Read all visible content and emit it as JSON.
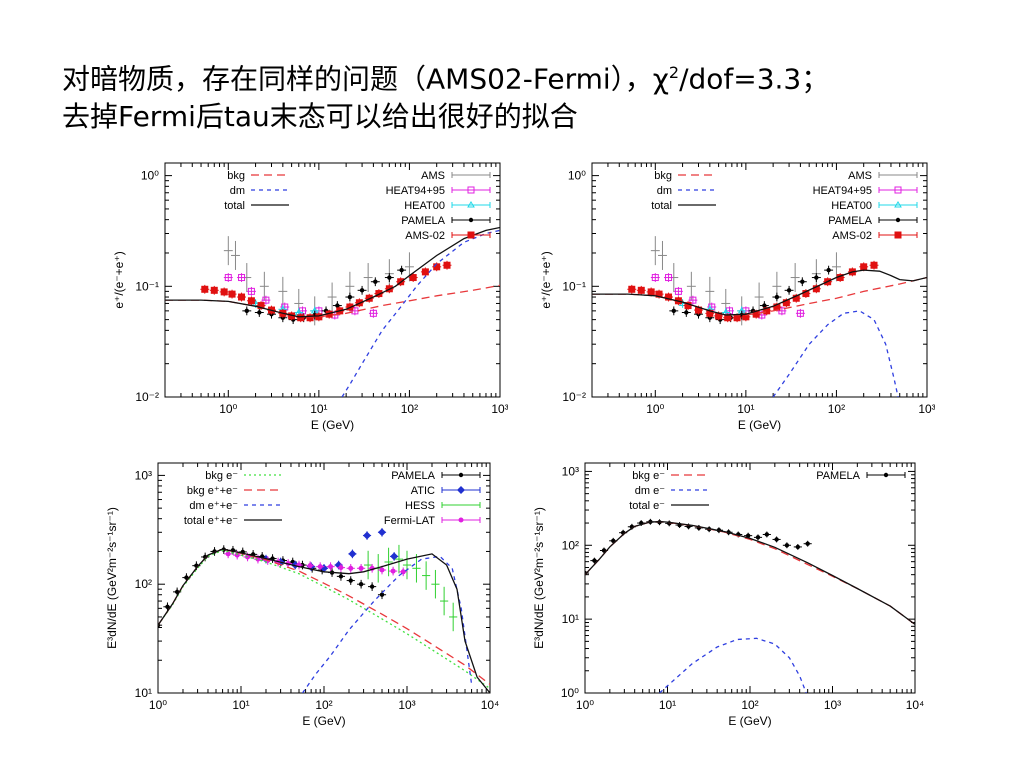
{
  "slide": {
    "title_line1_a": "对暗物质，存在同样的问题（AMS02-Fermi），χ",
    "title_line1_sup": "2",
    "title_line1_b": "/dof=3.3；",
    "title_line2": "去掉Fermi后tau末态可以给出很好的拟合"
  },
  "colors": {
    "bkg": "#e8383b",
    "dm": "#2f3fe0",
    "total": "#111111",
    "ams": "#888888",
    "heat9495": "#e020e0",
    "heat00": "#22d8e8",
    "pamela": "#000000",
    "ams02": "#e01010",
    "atic": "#2030d0",
    "hess": "#30d030",
    "fermi": "#e020e0",
    "bkg_e_minus": "#40e040"
  },
  "chart_data": [
    {
      "type": "scatter",
      "xlabel": "E (GeV)",
      "ylabel": "e⁺/(e⁻+e⁺)",
      "xscale": "log",
      "yscale": "log",
      "xlim": [
        0.2,
        1000
      ],
      "ylim": [
        0.01,
        1.3
      ],
      "xticks": [
        "10⁰",
        "10¹",
        "10²",
        "10³"
      ],
      "yticks": [
        "10⁻²",
        "10⁻¹",
        "10⁰"
      ],
      "legend_left": [
        "bkg",
        "dm",
        "total"
      ],
      "legend_right": [
        "AMS",
        "HEAT94+95",
        "HEAT00",
        "PAMELA",
        "AMS-02"
      ],
      "curves": {
        "bkg": {
          "x": [
            0.2,
            0.5,
            1,
            2,
            4,
            6,
            10,
            20,
            50,
            100,
            200,
            500,
            1000
          ],
          "y": [
            0.075,
            0.075,
            0.073,
            0.066,
            0.057,
            0.053,
            0.053,
            0.057,
            0.067,
            0.074,
            0.082,
            0.092,
            0.102
          ]
        },
        "dm": {
          "x": [
            18,
            22,
            30,
            50,
            80,
            120,
            200,
            400,
            700,
            1000
          ],
          "y": [
            0.01,
            0.013,
            0.02,
            0.04,
            0.065,
            0.1,
            0.16,
            0.25,
            0.3,
            0.32
          ]
        },
        "total": {
          "x": [
            0.2,
            0.5,
            1,
            2,
            4,
            6,
            10,
            20,
            40,
            70,
            100,
            200,
            400,
            700,
            1000
          ],
          "y": [
            0.075,
            0.075,
            0.073,
            0.066,
            0.057,
            0.053,
            0.054,
            0.062,
            0.08,
            0.1,
            0.125,
            0.19,
            0.27,
            0.32,
            0.34
          ]
        }
      },
      "series": [
        {
          "name": "AMS",
          "x": [
            1.0,
            1.2,
            1.6,
            2.5,
            4,
            6,
            9,
            14,
            22,
            35,
            60,
            100
          ],
          "y": [
            0.21,
            0.19,
            0.12,
            0.1,
            0.09,
            0.07,
            0.06,
            0.08,
            0.1,
            0.12,
            0.13,
            0.15
          ]
        },
        {
          "name": "HEAT94+95",
          "x": [
            1.0,
            1.4,
            1.8,
            2.6,
            4.2,
            6.6,
            10,
            15,
            25,
            40
          ],
          "y": [
            0.12,
            0.12,
            0.09,
            0.075,
            0.065,
            0.06,
            0.06,
            0.055,
            0.06,
            0.057
          ]
        },
        {
          "name": "HEAT00",
          "x": [
            2,
            4,
            6,
            9
          ],
          "y": [
            0.07,
            0.062,
            0.058,
            0.06
          ]
        },
        {
          "name": "PAMELA",
          "x": [
            1.6,
            2.2,
            3.0,
            4.0,
            5.2,
            6.8,
            9,
            12,
            16,
            22,
            30,
            42,
            60,
            82
          ],
          "y": [
            0.06,
            0.058,
            0.056,
            0.052,
            0.05,
            0.052,
            0.055,
            0.06,
            0.067,
            0.08,
            0.092,
            0.11,
            0.12,
            0.14
          ]
        },
        {
          "name": "AMS-02",
          "x": [
            0.55,
            0.7,
            0.9,
            1.1,
            1.4,
            1.8,
            2.3,
            3,
            4,
            5,
            6.3,
            8,
            10,
            13,
            17,
            22,
            28,
            36,
            46,
            60,
            80,
            110,
            150,
            200,
            260
          ],
          "y": [
            0.094,
            0.092,
            0.089,
            0.085,
            0.08,
            0.074,
            0.067,
            0.061,
            0.057,
            0.054,
            0.052,
            0.052,
            0.053,
            0.056,
            0.06,
            0.065,
            0.071,
            0.078,
            0.086,
            0.095,
            0.11,
            0.12,
            0.135,
            0.15,
            0.155
          ]
        }
      ]
    },
    {
      "type": "scatter",
      "xlabel": "E (GeV)",
      "ylabel": "e⁺/(e⁻+e⁺)",
      "xscale": "log",
      "yscale": "log",
      "xlim": [
        0.2,
        1000
      ],
      "ylim": [
        0.01,
        1.3
      ],
      "xticks": [
        "10⁰",
        "10¹",
        "10²",
        "10³"
      ],
      "yticks": [
        "10⁻²",
        "10⁻¹",
        "10⁰"
      ],
      "legend_left": [
        "bkg",
        "dm",
        "total"
      ],
      "legend_right": [
        "AMS",
        "HEAT94+95",
        "HEAT00",
        "PAMELA",
        "AMS-02"
      ],
      "curves": {
        "bkg": {
          "x": [
            0.2,
            0.5,
            1,
            2,
            4,
            6,
            10,
            20,
            50,
            100,
            200,
            500,
            1000
          ],
          "y": [
            0.085,
            0.085,
            0.082,
            0.072,
            0.06,
            0.055,
            0.055,
            0.06,
            0.07,
            0.078,
            0.09,
            0.105,
            0.12
          ]
        },
        "dm": {
          "x": [
            20,
            30,
            50,
            80,
            120,
            180,
            260,
            350,
            430,
            480
          ],
          "y": [
            0.01,
            0.016,
            0.03,
            0.045,
            0.057,
            0.06,
            0.05,
            0.03,
            0.015,
            0.01
          ]
        },
        "total": {
          "x": [
            0.2,
            0.5,
            1,
            2,
            4,
            6,
            10,
            20,
            40,
            70,
            100,
            150,
            200,
            300,
            400,
            500,
            700,
            1000
          ],
          "y": [
            0.085,
            0.085,
            0.082,
            0.072,
            0.06,
            0.055,
            0.056,
            0.066,
            0.085,
            0.105,
            0.12,
            0.135,
            0.14,
            0.137,
            0.125,
            0.115,
            0.112,
            0.12
          ]
        }
      },
      "series": [
        {
          "name": "AMS",
          "x": [
            1.0,
            1.2,
            1.6,
            2.5,
            4,
            6,
            9,
            14,
            22,
            35,
            60,
            100
          ],
          "y": [
            0.21,
            0.19,
            0.12,
            0.1,
            0.09,
            0.07,
            0.06,
            0.08,
            0.1,
            0.12,
            0.13,
            0.15
          ]
        },
        {
          "name": "HEAT94+95",
          "x": [
            1.0,
            1.4,
            1.8,
            2.6,
            4.2,
            6.6,
            10,
            15,
            25,
            40
          ],
          "y": [
            0.12,
            0.12,
            0.09,
            0.075,
            0.065,
            0.06,
            0.06,
            0.055,
            0.06,
            0.057
          ]
        },
        {
          "name": "HEAT00",
          "x": [
            2,
            4,
            6,
            9
          ],
          "y": [
            0.07,
            0.062,
            0.058,
            0.06
          ]
        },
        {
          "name": "PAMELA",
          "x": [
            1.6,
            2.2,
            3.0,
            4.0,
            5.2,
            6.8,
            9,
            12,
            16,
            22,
            30,
            42,
            60,
            82
          ],
          "y": [
            0.06,
            0.058,
            0.056,
            0.052,
            0.05,
            0.052,
            0.055,
            0.06,
            0.067,
            0.08,
            0.092,
            0.11,
            0.12,
            0.14
          ]
        },
        {
          "name": "AMS-02",
          "x": [
            0.55,
            0.7,
            0.9,
            1.1,
            1.4,
            1.8,
            2.3,
            3,
            4,
            5,
            6.3,
            8,
            10,
            13,
            17,
            22,
            28,
            36,
            46,
            60,
            80,
            110,
            150,
            200,
            260
          ],
          "y": [
            0.094,
            0.092,
            0.089,
            0.085,
            0.08,
            0.074,
            0.067,
            0.061,
            0.057,
            0.054,
            0.052,
            0.052,
            0.053,
            0.056,
            0.06,
            0.065,
            0.071,
            0.078,
            0.086,
            0.095,
            0.11,
            0.12,
            0.135,
            0.15,
            0.155
          ]
        }
      ]
    },
    {
      "type": "scatter",
      "xlabel": "E (GeV)",
      "ylabel": "E³dN/dE (GeV²m⁻²s⁻¹sr⁻¹)",
      "xscale": "log",
      "yscale": "log",
      "xlim": [
        1,
        10000
      ],
      "ylim": [
        10,
        1300
      ],
      "xticks": [
        "10⁰",
        "10¹",
        "10²",
        "10³",
        "10⁴"
      ],
      "yticks": [
        "10¹",
        "10²",
        "10³"
      ],
      "legend_left": [
        "bkg e⁻",
        "bkg e⁺+e⁻",
        "dm e⁺+e⁻",
        "total e⁺+e⁻"
      ],
      "legend_right": [
        "PAMELA",
        "ATIC",
        "HESS",
        "Fermi-LAT"
      ],
      "curves": {
        "bkg_e_minus": {
          "x": [
            1,
            1.5,
            2,
            3,
            4,
            6,
            10,
            20,
            50,
            100,
            200,
            500,
            1000,
            2000,
            5000,
            10000
          ],
          "y": [
            42,
            65,
            95,
            140,
            180,
            205,
            185,
            160,
            125,
            95,
            72,
            48,
            35,
            25,
            16,
            11
          ]
        },
        "bkg": {
          "x": [
            1,
            1.5,
            2,
            3,
            4,
            6,
            10,
            20,
            50,
            100,
            200,
            500,
            1000,
            2000,
            5000,
            10000
          ],
          "y": [
            42,
            66,
            97,
            145,
            185,
            210,
            192,
            168,
            132,
            102,
            78,
            53,
            39,
            28,
            18,
            12
          ]
        },
        "dm": {
          "x": [
            55,
            80,
            120,
            200,
            400,
            800,
            1500,
            2500,
            3500,
            4500,
            6000
          ],
          "y": [
            10,
            15,
            22,
            38,
            70,
            120,
            170,
            180,
            140,
            60,
            12
          ]
        },
        "total": {
          "x": [
            1,
            1.5,
            2,
            3,
            4,
            6,
            10,
            20,
            50,
            100,
            200,
            300,
            500,
            1000,
            2000,
            3000,
            4000,
            5000,
            7000,
            10000
          ],
          "y": [
            42,
            66,
            97,
            145,
            185,
            210,
            194,
            172,
            145,
            130,
            125,
            130,
            145,
            170,
            190,
            150,
            90,
            30,
            14,
            10
          ]
        }
      },
      "series": [
        {
          "name": "PAMELA",
          "x": [
            1,
            1.3,
            1.7,
            2.2,
            2.9,
            3.7,
            4.8,
            6.2,
            8,
            10.5,
            14,
            18,
            24,
            32,
            42,
            55,
            72,
            95,
            125,
            160,
            210,
            280,
            380,
            500
          ],
          "y": [
            42,
            62,
            85,
            115,
            148,
            178,
            200,
            208,
            205,
            198,
            188,
            180,
            172,
            165,
            160,
            150,
            140,
            135,
            128,
            118,
            108,
            100,
            95,
            80
          ]
        },
        {
          "name": "ATIC",
          "x": [
            20,
            30,
            45,
            70,
            100,
            150,
            220,
            330,
            500,
            700
          ],
          "y": [
            170,
            160,
            150,
            145,
            140,
            150,
            190,
            280,
            300,
            180
          ]
        },
        {
          "name": "HESS",
          "x": [
            340,
            450,
            600,
            800,
            1000,
            1300,
            1700,
            2200,
            2800,
            3600
          ],
          "y": [
            150,
            140,
            160,
            170,
            150,
            140,
            120,
            100,
            70,
            50
          ]
        },
        {
          "name": "Fermi-LAT",
          "x": [
            7,
            9,
            12,
            16,
            21,
            28,
            37,
            50,
            68,
            90,
            120,
            160,
            210,
            280,
            380,
            500,
            680,
            900
          ],
          "y": [
            190,
            185,
            178,
            170,
            165,
            160,
            155,
            150,
            148,
            145,
            145,
            142,
            140,
            140,
            140,
            135,
            132,
            130
          ]
        }
      ]
    },
    {
      "type": "scatter",
      "xlabel": "E (GeV)",
      "ylabel": "E³dN/dE (GeV²m⁻²s⁻¹sr⁻¹)",
      "xscale": "log",
      "yscale": "log",
      "xlim": [
        1,
        10000
      ],
      "ylim": [
        1,
        1300
      ],
      "xticks": [
        "10⁰",
        "10¹",
        "10²",
        "10³",
        "10⁴"
      ],
      "yticks": [
        "10⁰",
        "10¹",
        "10²",
        "10³"
      ],
      "legend_left": [
        "bkg e⁻",
        "dm e⁻",
        "total e⁻"
      ],
      "legend_right": [
        "PAMELA"
      ],
      "curves": {
        "bkg": {
          "x": [
            1,
            1.5,
            2,
            3,
            4,
            6,
            8,
            10,
            20,
            50,
            100,
            200,
            500,
            1000,
            2000,
            5000,
            10000
          ],
          "y": [
            40,
            65,
            95,
            145,
            180,
            205,
            210,
            205,
            185,
            150,
            120,
            90,
            55,
            38,
            26,
            15,
            8.5
          ]
        },
        "dm": {
          "x": [
            8,
            12,
            20,
            40,
            70,
            120,
            200,
            300,
            400,
            480
          ],
          "y": [
            1,
            1.5,
            2.5,
            4.2,
            5.3,
            5.5,
            4.6,
            3,
            1.7,
            1
          ]
        },
        "total": {
          "x": [
            1,
            1.5,
            2,
            3,
            4,
            6,
            8,
            10,
            20,
            50,
            100,
            200,
            500,
            1000,
            2000,
            5000,
            10000
          ],
          "y": [
            40,
            65,
            95,
            145,
            180,
            205,
            210,
            206,
            186,
            152,
            124,
            94,
            58,
            39,
            26,
            15,
            8.5
          ]
        }
      },
      "series": [
        {
          "name": "PAMELA",
          "x": [
            1,
            1.3,
            1.7,
            2.2,
            2.9,
            3.7,
            4.8,
            6.2,
            8,
            10.5,
            14,
            18,
            24,
            32,
            42,
            55,
            72,
            95,
            125,
            160,
            210,
            280,
            380,
            500
          ],
          "y": [
            42,
            62,
            85,
            115,
            148,
            178,
            200,
            208,
            205,
            198,
            188,
            180,
            172,
            165,
            160,
            150,
            140,
            135,
            128,
            140,
            120,
            100,
            95,
            105
          ]
        }
      ]
    }
  ]
}
